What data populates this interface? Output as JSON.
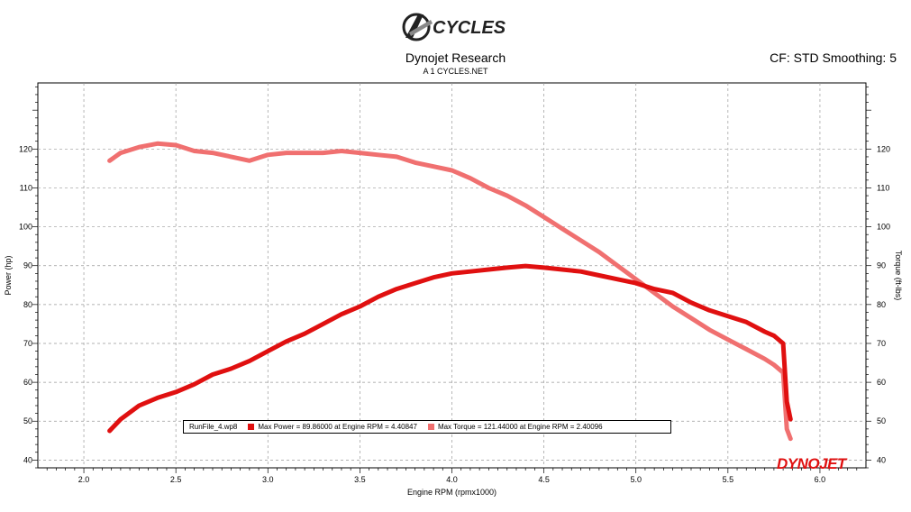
{
  "header": {
    "logo_text": "CYCLES",
    "title": "Dynojet Research",
    "subtitle": "A 1 CYCLES.NET",
    "cf_text": "CF: STD Smoothing: 5"
  },
  "legend": {
    "run": "RunFile_4.wp8",
    "power_label": "Max Power = 89.86000 at Engine RPM = 4.40847",
    "torque_label": "Max Torque = 121.44000 at Engine RPM = 2.40096"
  },
  "brand_watermark": "DYNOJET",
  "colors": {
    "power": "#e01010",
    "torque": "#f07070",
    "grid": "#999999"
  },
  "chart_data": {
    "type": "line",
    "xlabel": "Engine RPM (rpmx1000)",
    "ylabel": "Power (hp)",
    "y2label": "Torque (ft-lbs)",
    "xlim": [
      1.75,
      6.25
    ],
    "ylim": [
      38,
      137
    ],
    "x_ticks": [
      "2.0",
      "2.5",
      "3.0",
      "3.5",
      "4.0",
      "4.5",
      "5.0",
      "5.5",
      "6.0"
    ],
    "y_ticks": [
      "40",
      "50",
      "60",
      "70",
      "80",
      "90",
      "100",
      "110",
      "120"
    ],
    "grid": true,
    "series": [
      {
        "name": "Max Power = 89.86000 at Engine RPM = 4.40847",
        "color": "#e01010",
        "x": [
          2.14,
          2.2,
          2.3,
          2.4,
          2.5,
          2.6,
          2.7,
          2.8,
          2.9,
          3.0,
          3.1,
          3.2,
          3.3,
          3.4,
          3.5,
          3.6,
          3.7,
          3.8,
          3.9,
          4.0,
          4.1,
          4.2,
          4.3,
          4.4,
          4.5,
          4.6,
          4.7,
          4.8,
          4.9,
          5.0,
          5.1,
          5.2,
          5.3,
          5.4,
          5.5,
          5.6,
          5.7,
          5.75,
          5.8,
          5.82,
          5.84
        ],
        "values": [
          47.5,
          50.5,
          54,
          56,
          57.5,
          59.5,
          62,
          63.5,
          65.5,
          68,
          70.5,
          72.5,
          75,
          77.5,
          79.5,
          82,
          84,
          85.5,
          87,
          88,
          88.5,
          89,
          89.5,
          89.9,
          89.5,
          89,
          88.5,
          87.5,
          86.5,
          85.5,
          84,
          83,
          80.5,
          78.5,
          77,
          75.5,
          73,
          72,
          70,
          55,
          50.5
        ]
      },
      {
        "name": "Max Torque = 121.44000 at Engine RPM = 2.40096",
        "color": "#f07070",
        "x": [
          2.14,
          2.2,
          2.3,
          2.4,
          2.5,
          2.6,
          2.7,
          2.8,
          2.9,
          3.0,
          3.1,
          3.2,
          3.3,
          3.4,
          3.5,
          3.6,
          3.7,
          3.8,
          3.9,
          4.0,
          4.1,
          4.2,
          4.3,
          4.4,
          4.5,
          4.6,
          4.7,
          4.8,
          4.9,
          5.0,
          5.1,
          5.2,
          5.3,
          5.4,
          5.5,
          5.6,
          5.7,
          5.75,
          5.8,
          5.82,
          5.84
        ],
        "values": [
          117,
          119,
          120.5,
          121.4,
          121,
          119.5,
          119,
          118,
          117,
          118.5,
          119,
          119,
          119,
          119.5,
          119,
          118.5,
          118,
          116.5,
          115.5,
          114.5,
          112.5,
          110,
          108,
          105.5,
          102.5,
          99.5,
          96.5,
          93.5,
          90,
          86.5,
          83,
          79.5,
          76.5,
          73.5,
          71,
          68.5,
          66,
          64.5,
          62.5,
          48,
          45.5
        ]
      }
    ]
  }
}
